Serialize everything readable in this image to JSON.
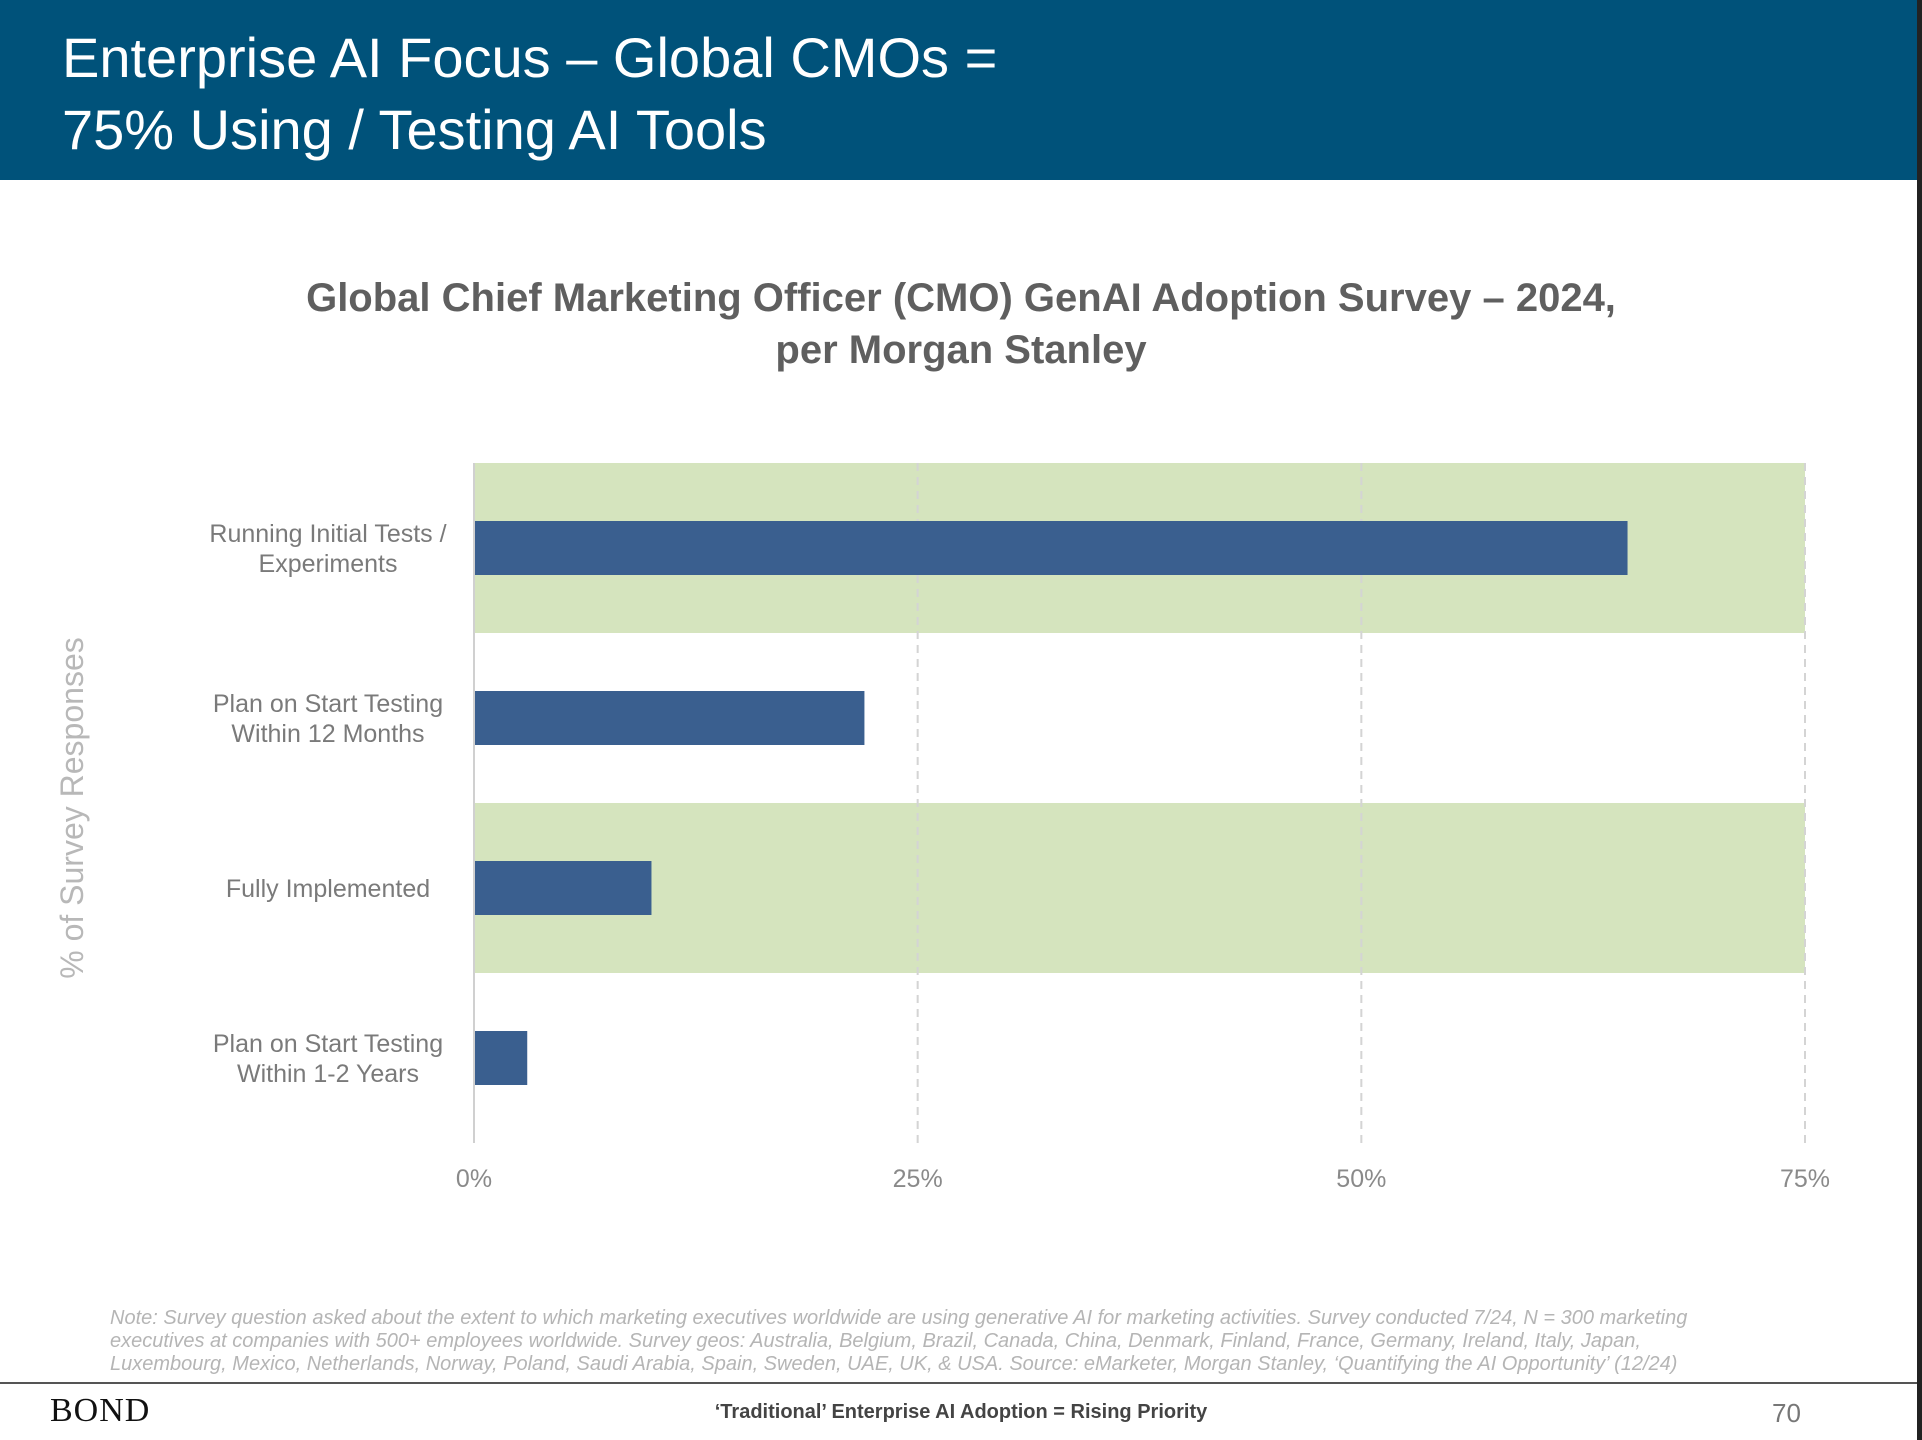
{
  "header": {
    "title_line1": "Enterprise AI Focus – Global CMOs =",
    "title_line2": "75% Using / Testing AI Tools"
  },
  "chart_title": {
    "line1": "Global Chief Marketing Officer (CMO) GenAI Adoption Survey – 2024,",
    "line2": "per Morgan Stanley"
  },
  "chart_data": {
    "type": "bar",
    "orientation": "horizontal",
    "title": "Global Chief Marketing Officer (CMO) GenAI Adoption Survey – 2024, per Morgan Stanley",
    "ylabel": "% of Survey Responses",
    "xlim": [
      0,
      75
    ],
    "x_ticks": [
      "0%",
      "25%",
      "50%",
      "75%"
    ],
    "grid": "vertical dashed",
    "categories": [
      [
        "Running Initial Tests /",
        "Experiments"
      ],
      [
        "Plan on Start Testing",
        "Within 12 Months"
      ],
      [
        "Fully Implemented"
      ],
      [
        "Plan on Start Testing",
        "Within 1-2 Years"
      ]
    ],
    "values": [
      65,
      22,
      10,
      3
    ],
    "highlighted_rows": [
      0,
      2
    ],
    "colors": {
      "bar": "#3a5f8f",
      "highlight": "#d5e4be",
      "axis_text": "#8a8a8a",
      "category_text": "#7a7a7a",
      "ylabel": "#b8b8b8"
    }
  },
  "note": {
    "line1": "Note: Survey question asked about the extent to which marketing executives worldwide are using generative AI for marketing activities. Survey conducted 7/24, N = 300 marketing",
    "line2": "executives at companies with 500+ employees worldwide. Survey geos: Australia, Belgium, Brazil, Canada, China, Denmark, Finland, France, Germany, Ireland, Italy, Japan,",
    "line3": "Luxembourg, Mexico, Netherlands, Norway, Poland, Saudi Arabia, Spain, Sweden, UAE, UK, & USA. Source: eMarketer, Morgan Stanley, ‘Quantifying the AI Opportunity’ (12/24)"
  },
  "footer": {
    "logo": "BOND",
    "center_text": "‘Traditional’ Enterprise AI Adoption = Rising Priority",
    "page_number": "70"
  }
}
